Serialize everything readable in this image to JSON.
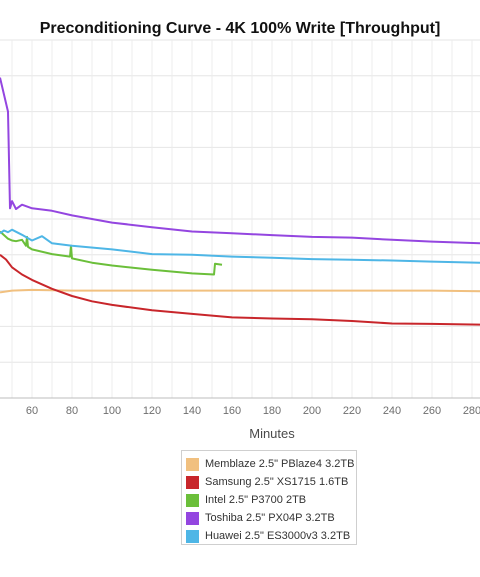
{
  "chart_data": {
    "type": "line",
    "title": "Preconditioning Curve - 4K 100% Write [Throughput]",
    "xlabel": "Minutes",
    "ylabel": "",
    "xlim": [
      44,
      284
    ],
    "ylim": [
      0,
      100
    ],
    "x_ticks": [
      60,
      80,
      100,
      120,
      140,
      160,
      180,
      200,
      220,
      240,
      260,
      280
    ],
    "grid": true,
    "legend_position": "bottom",
    "series": [
      {
        "name": "Memblaze 2.5\" PBlaze4 3.2TB",
        "color": "#f1c07f",
        "x": [
          44,
          50,
          60,
          70,
          80,
          100,
          120,
          140,
          160,
          180,
          200,
          220,
          240,
          260,
          284
        ],
        "y": [
          29.5,
          30,
          30.2,
          30.1,
          30,
          30,
          30,
          30,
          30,
          30,
          30,
          30,
          30,
          30,
          29.8
        ]
      },
      {
        "name": "Samsung 2.5\" XS1715 1.6TB",
        "color": "#c8262b",
        "x": [
          44,
          47,
          50,
          55,
          60,
          70,
          80,
          90,
          100,
          120,
          140,
          160,
          180,
          200,
          220,
          240,
          260,
          284
        ],
        "y": [
          40,
          38.7,
          36.5,
          34.5,
          33,
          30.5,
          28.5,
          27,
          26,
          24.5,
          23.5,
          22.5,
          22.2,
          22,
          21.5,
          20.8,
          20.7,
          20.5
        ]
      },
      {
        "name": "Intel 2.5\" P3700 2TB",
        "color": "#6bbf3a",
        "x": [
          44,
          46,
          48,
          50,
          52,
          55,
          57,
          57.5,
          58,
          60,
          70,
          79,
          79.5,
          80,
          90,
          100,
          120,
          140,
          151,
          151.5,
          155
        ],
        "y": [
          46.5,
          45.5,
          44.5,
          44,
          43.8,
          44.2,
          42.5,
          45,
          42.2,
          41.5,
          40.2,
          39.5,
          42.5,
          39,
          37.8,
          37,
          35.8,
          34.8,
          34.5,
          37.5,
          37.2
        ]
      },
      {
        "name": "Toshiba 2.5\" PX04P 3.2TB",
        "color": "#9446e0",
        "x": [
          44,
          48,
          49,
          50,
          52,
          55,
          60,
          70,
          80,
          100,
          120,
          140,
          160,
          180,
          200,
          220,
          240,
          260,
          284
        ],
        "y": [
          89.5,
          80,
          53,
          55,
          52.8,
          54,
          53,
          52.3,
          51,
          49,
          47.7,
          46.5,
          46,
          45.5,
          45,
          44.8,
          44.2,
          43.7,
          43.2
        ]
      },
      {
        "name": "Huawei 2.5\" ES3000v3 3.2TB",
        "color": "#4eb6e6",
        "x": [
          44,
          46,
          48,
          50,
          55,
          60,
          65,
          70,
          80,
          100,
          120,
          140,
          160,
          180,
          200,
          220,
          240,
          260,
          284
        ],
        "y": [
          46,
          46.8,
          46.3,
          47,
          45.6,
          44,
          45.2,
          43.2,
          42.5,
          41.5,
          40.2,
          40,
          39.5,
          39.2,
          38.8,
          38.6,
          38.4,
          38.1,
          37.8
        ]
      }
    ]
  }
}
